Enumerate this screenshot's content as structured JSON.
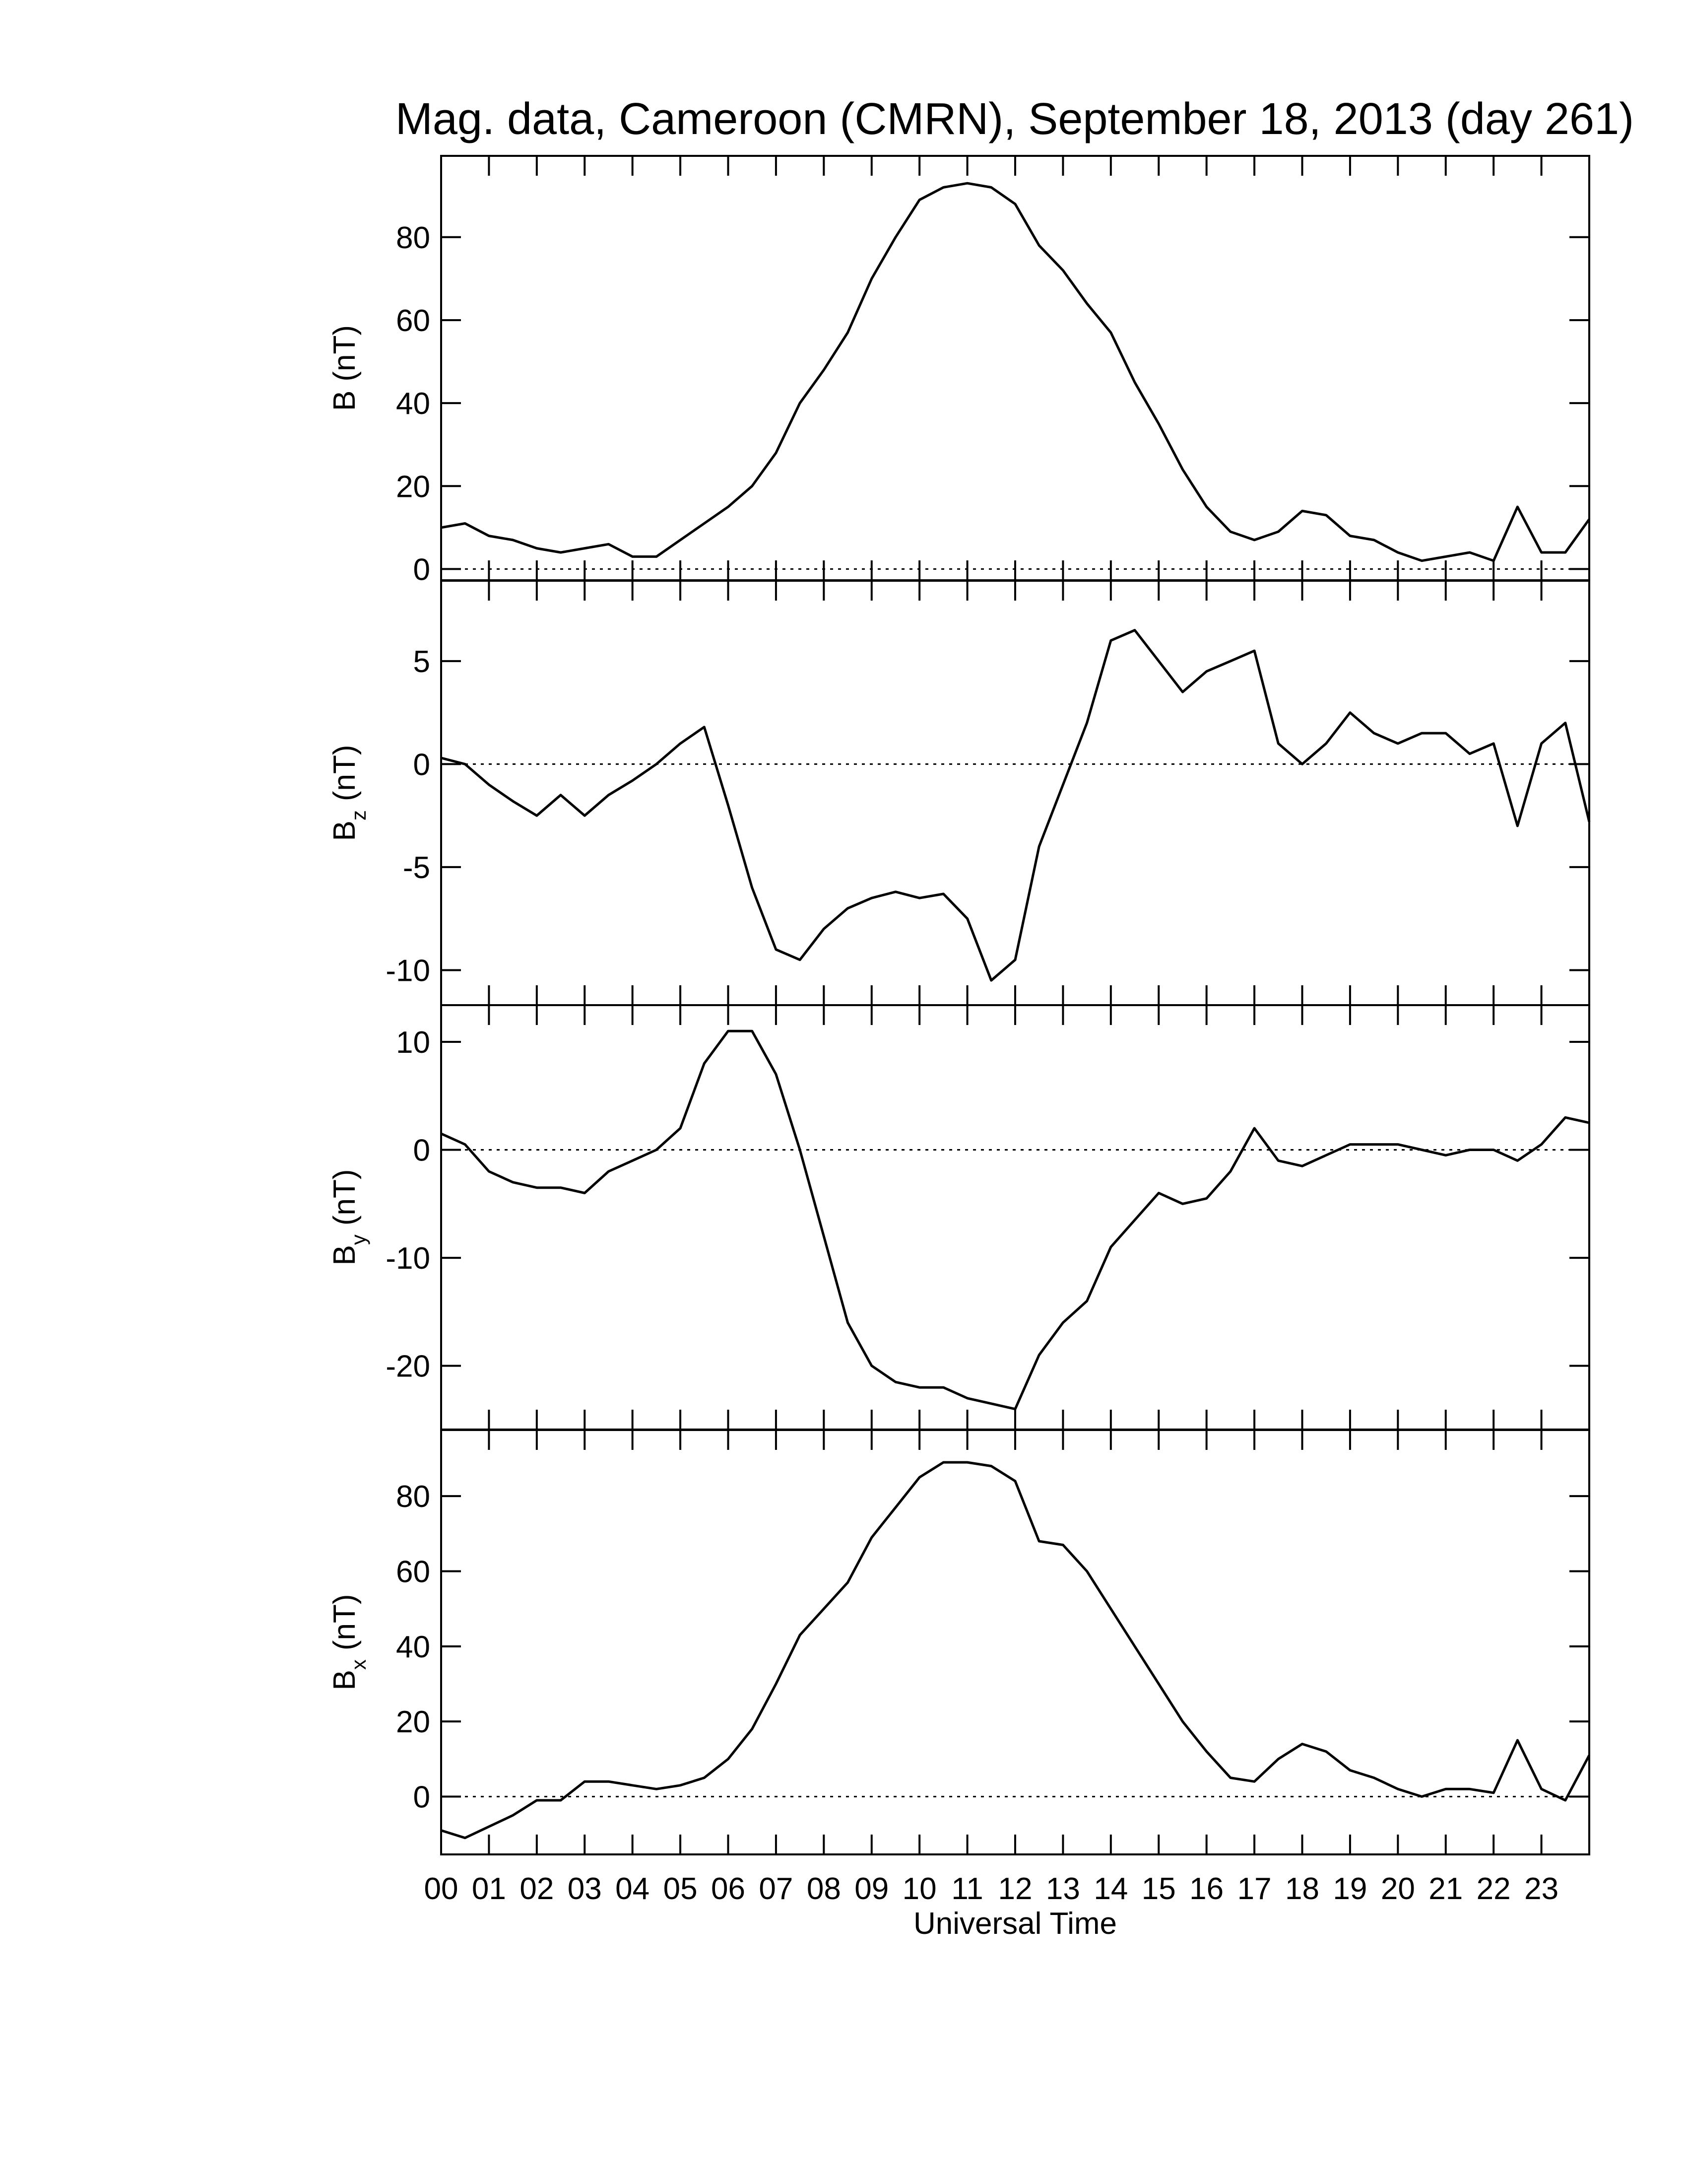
{
  "chart_data": [
    {
      "type": "line",
      "title": "Mag. data, Cameroon (CMRN), September 18, 2013 (day 261)",
      "ylabel": {
        "symbol": "B",
        "unit": "(nT)"
      },
      "x": [
        0,
        0.5,
        1,
        1.5,
        2,
        2.5,
        3,
        3.5,
        4,
        4.5,
        5,
        5.5,
        6,
        6.5,
        7,
        7.5,
        8,
        8.5,
        9,
        9.5,
        10,
        10.5,
        11,
        11.5,
        12,
        12.5,
        13,
        13.5,
        14,
        14.5,
        15,
        15.5,
        16,
        16.5,
        17,
        17.5,
        18,
        18.5,
        19,
        19.5,
        20,
        20.5,
        21,
        21.5,
        22,
        22.5,
        23,
        23.5,
        24
      ],
      "values": [
        10,
        11,
        8,
        7,
        5,
        4,
        5,
        6,
        3,
        3,
        7,
        11,
        15,
        20,
        28,
        40,
        48,
        57,
        70,
        80,
        89,
        92,
        93,
        92,
        88,
        78,
        72,
        64,
        57,
        45,
        35,
        24,
        15,
        9,
        7,
        9,
        14,
        13,
        8,
        7,
        4,
        2,
        3,
        4,
        2,
        15,
        4,
        4,
        12
      ],
      "color": "#000000",
      "xlim": [
        0,
        24
      ],
      "ylim": [
        -2.7,
        99.6
      ],
      "yticks": [
        0,
        20,
        40,
        60,
        80
      ],
      "hline": 0
    },
    {
      "type": "line",
      "ylabel": {
        "symbol": "B",
        "subscript": "z",
        "unit": "(nT)"
      },
      "x": [
        0,
        0.5,
        1,
        1.5,
        2,
        2.5,
        3,
        3.5,
        4,
        4.5,
        5,
        5.5,
        6,
        6.5,
        7,
        7.5,
        8,
        8.5,
        9,
        9.5,
        10,
        10.5,
        11,
        11.5,
        12,
        12.5,
        13,
        13.5,
        14,
        14.5,
        15,
        15.5,
        16,
        16.5,
        17,
        17.5,
        18,
        18.5,
        19,
        19.5,
        20,
        20.5,
        21,
        21.5,
        22,
        22.5,
        23,
        23.5,
        24
      ],
      "values": [
        0.3,
        0,
        -1,
        -1.8,
        -2.5,
        -1.5,
        -2.5,
        -1.5,
        -0.8,
        0,
        1,
        1.8,
        -2,
        -6,
        -9,
        -9.5,
        -8,
        -7,
        -6.5,
        -6.2,
        -6.5,
        -6.3,
        -7.5,
        -10.5,
        -9.5,
        -4,
        -1,
        2,
        6,
        6.5,
        5,
        3.5,
        4.5,
        5,
        5.5,
        1,
        0,
        1,
        2.5,
        1.5,
        1,
        1.5,
        1.5,
        0.5,
        1,
        -3,
        1,
        2,
        -2.8
      ],
      "color": "#000000",
      "xlim": [
        0,
        24
      ],
      "ylim": [
        -11.7,
        8.9
      ],
      "yticks": [
        -10,
        -5,
        0,
        5
      ],
      "hline": 0
    },
    {
      "type": "line",
      "ylabel": {
        "symbol": "B",
        "subscript": "y",
        "unit": "(nT)"
      },
      "x": [
        0,
        0.5,
        1,
        1.5,
        2,
        2.5,
        3,
        3.5,
        4,
        4.5,
        5,
        5.5,
        6,
        6.5,
        7,
        7.5,
        8,
        8.5,
        9,
        9.5,
        10,
        10.5,
        11,
        11.5,
        12,
        12.5,
        13,
        13.5,
        14,
        14.5,
        15,
        15.5,
        16,
        16.5,
        17,
        17.5,
        18,
        18.5,
        19,
        19.5,
        20,
        20.5,
        21,
        21.5,
        22,
        22.5,
        23,
        23.5,
        24
      ],
      "values": [
        1.5,
        0.5,
        -2,
        -3,
        -3.5,
        -3.5,
        -4,
        -2,
        -1,
        0,
        2,
        8,
        11,
        11,
        7,
        0,
        -8,
        -16,
        -20,
        -21.5,
        -22,
        -22,
        -23,
        -23.5,
        -24,
        -19,
        -16,
        -14,
        -9,
        -6.5,
        -4,
        -5,
        -4.5,
        -2,
        2,
        -1,
        -1.5,
        -0.5,
        0.5,
        0.5,
        0.5,
        0,
        -0.5,
        0,
        0,
        -1,
        0.5,
        3,
        2.5
      ],
      "color": "#000000",
      "xlim": [
        0,
        24
      ],
      "ylim": [
        -25.9,
        13.4
      ],
      "yticks": [
        -20,
        -10,
        0,
        10
      ],
      "hline": 0
    },
    {
      "type": "line",
      "ylabel": {
        "symbol": "B",
        "subscript": "x",
        "unit": "(nT)"
      },
      "xlabel": "Universal Time",
      "x": [
        0,
        0.5,
        1,
        1.5,
        2,
        2.5,
        3,
        3.5,
        4,
        4.5,
        5,
        5.5,
        6,
        6.5,
        7,
        7.5,
        8,
        8.5,
        9,
        9.5,
        10,
        10.5,
        11,
        11.5,
        12,
        12.5,
        13,
        13.5,
        14,
        14.5,
        15,
        15.5,
        16,
        16.5,
        17,
        17.5,
        18,
        18.5,
        19,
        19.5,
        20,
        20.5,
        21,
        21.5,
        22,
        22.5,
        23,
        23.5,
        24
      ],
      "values": [
        -9,
        -11,
        -8,
        -5,
        -1,
        -1,
        4,
        4,
        3,
        2,
        3,
        5,
        10,
        18,
        30,
        43,
        50,
        57,
        69,
        77,
        85,
        89,
        89,
        88,
        84,
        68,
        67,
        60,
        50,
        40,
        30,
        20,
        12,
        5,
        4,
        10,
        14,
        12,
        7,
        5,
        2,
        0,
        2,
        2,
        1,
        15,
        2,
        -1,
        11
      ],
      "color": "#000000",
      "xlim": [
        0,
        24
      ],
      "ylim": [
        -15.4,
        97.6
      ],
      "yticks": [
        0,
        20,
        40,
        60,
        80
      ],
      "hline": 0,
      "xticks": [
        {
          "value": 0,
          "label": "00"
        },
        {
          "value": 1,
          "label": "01"
        },
        {
          "value": 2,
          "label": "02"
        },
        {
          "value": 3,
          "label": "03"
        },
        {
          "value": 4,
          "label": "04"
        },
        {
          "value": 5,
          "label": "05"
        },
        {
          "value": 6,
          "label": "06"
        },
        {
          "value": 7,
          "label": "07"
        },
        {
          "value": 8,
          "label": "08"
        },
        {
          "value": 9,
          "label": "09"
        },
        10,
        11,
        12,
        13,
        14,
        15,
        16,
        17,
        18,
        19,
        20,
        21,
        22,
        23
      ]
    }
  ]
}
